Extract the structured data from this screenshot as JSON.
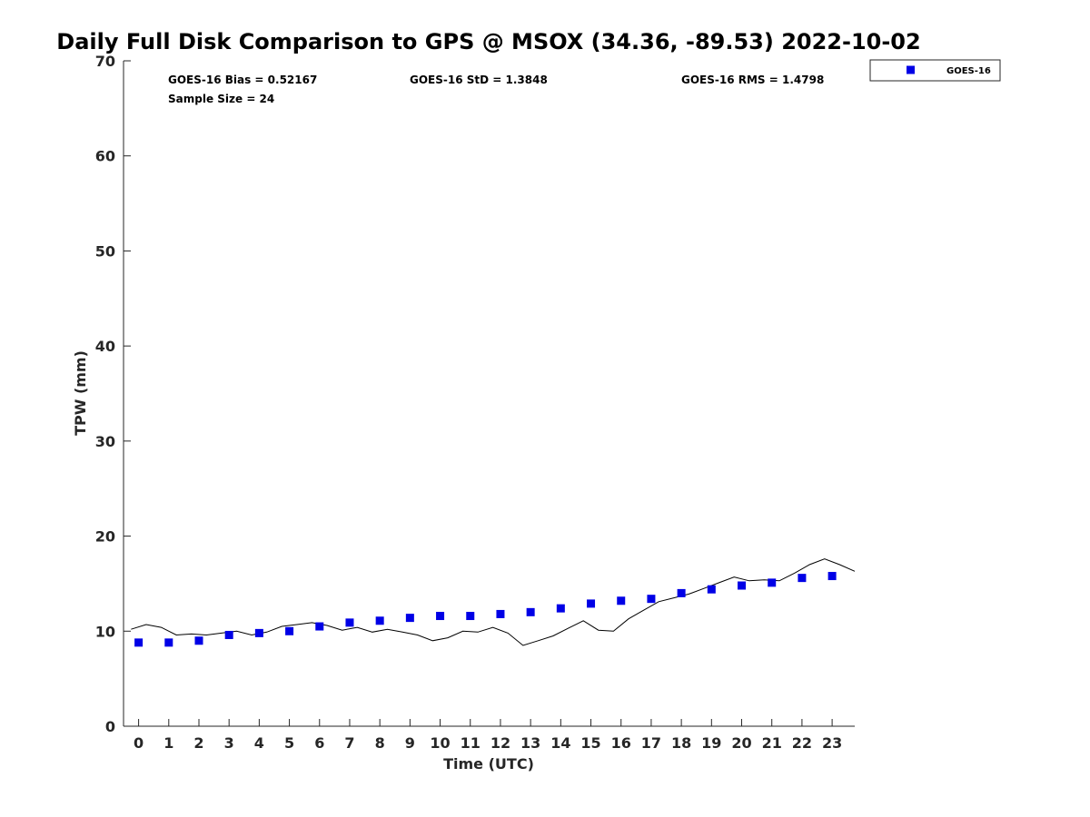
{
  "chart_data": {
    "type": "scatter",
    "title": "Daily Full Disk Comparison to GPS @ MSOX (34.36, -89.53) 2022-10-02",
    "xlabel": "Time (UTC)",
    "ylabel": "TPW (mm)",
    "xlim": [
      -0.5,
      23.75
    ],
    "ylim": [
      0,
      70
    ],
    "x_ticks": [
      0,
      1,
      2,
      3,
      4,
      5,
      6,
      7,
      8,
      9,
      10,
      11,
      12,
      13,
      14,
      15,
      16,
      17,
      18,
      19,
      20,
      21,
      22,
      23
    ],
    "y_ticks": [
      0,
      10,
      20,
      30,
      40,
      50,
      60,
      70
    ],
    "grid": false,
    "legend_position": "top-right",
    "stats": {
      "bias": "GOES-16 Bias = 0.52167",
      "std": "GOES-16 StD = 1.3848",
      "rms": "GOES-16 RMS = 1.4798",
      "sample": "Sample Size = 24"
    },
    "series": [
      {
        "name": "GOES-16",
        "marker": "square",
        "color": "#0000e6",
        "x": [
          0,
          1,
          2,
          3,
          4,
          5,
          6,
          7,
          8,
          9,
          10,
          11,
          12,
          13,
          14,
          15,
          16,
          17,
          18,
          19,
          20,
          21,
          22,
          23
        ],
        "y": [
          8.8,
          8.8,
          9.0,
          9.6,
          9.8,
          10.0,
          10.5,
          10.9,
          11.1,
          11.4,
          11.6,
          11.6,
          11.8,
          12.0,
          12.4,
          12.9,
          13.2,
          13.4,
          14.0,
          14.4,
          14.8,
          15.1,
          15.6,
          15.8
        ]
      },
      {
        "type": "line",
        "color": "#000000",
        "x": [
          -0.25,
          0.25,
          0.75,
          1.25,
          1.75,
          2.25,
          2.75,
          3.25,
          3.75,
          4.25,
          4.75,
          5.25,
          5.75,
          6.25,
          6.75,
          7.25,
          7.75,
          8.25,
          8.75,
          9.25,
          9.75,
          10.25,
          10.75,
          11.25,
          11.75,
          12.25,
          12.75,
          13.25,
          13.75,
          14.25,
          14.75,
          15.25,
          15.75,
          16.25,
          16.75,
          17.25,
          17.75,
          18.25,
          18.75,
          19.25,
          19.75,
          20.25,
          20.75,
          21.25,
          21.75,
          22.25,
          22.75,
          23.25,
          23.75
        ],
        "y": [
          10.2,
          10.7,
          10.4,
          9.6,
          9.7,
          9.6,
          9.8,
          10.0,
          9.6,
          9.9,
          10.5,
          10.7,
          10.9,
          10.6,
          10.1,
          10.4,
          9.9,
          10.2,
          9.9,
          9.6,
          9.0,
          9.3,
          10.0,
          9.9,
          10.4,
          9.8,
          8.5,
          9.0,
          9.5,
          10.3,
          11.1,
          10.1,
          10.0,
          11.3,
          12.2,
          13.1,
          13.5,
          13.9,
          14.5,
          15.1,
          15.7,
          15.3,
          15.4,
          15.3,
          16.1,
          17.0,
          17.6,
          17.0,
          16.3
        ]
      }
    ]
  }
}
